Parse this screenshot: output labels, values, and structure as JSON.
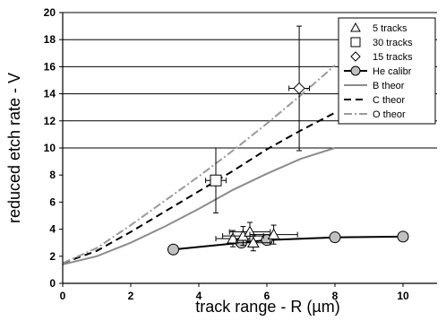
{
  "chart_data": {
    "type": "line",
    "xlabel": "track range - R (µm)",
    "ylabel": "reduced etch rate - V",
    "xlim": [
      0,
      11
    ],
    "ylim": [
      0,
      20
    ],
    "x_ticks": [
      0,
      2,
      4,
      6,
      8,
      10
    ],
    "y_ticks": [
      0,
      2,
      4,
      6,
      8,
      10,
      12,
      14,
      16,
      18,
      20
    ],
    "grid": "horizontal lines at 10 to 20",
    "legend_position": "top-right",
    "series": [
      {
        "name": "5  tracks",
        "kind": "scatter",
        "marker": "triangle",
        "points": [
          {
            "x": 5.0,
            "y": 3.3,
            "xerr": 0.5,
            "yerr": 0.6
          },
          {
            "x": 5.3,
            "y": 3.5,
            "xerr": 0.6,
            "yerr": 0.7
          },
          {
            "x": 5.5,
            "y": 3.8,
            "xerr": 0.6,
            "yerr": 0.7
          },
          {
            "x": 5.6,
            "y": 3.0,
            "xerr": 0.5,
            "yerr": 0.6
          },
          {
            "x": 6.2,
            "y": 3.6,
            "xerr": 0.7,
            "yerr": 0.7
          }
        ]
      },
      {
        "name": "30 tracks",
        "kind": "scatter",
        "marker": "square",
        "points": [
          {
            "x": 4.5,
            "y": 7.6,
            "xerr": 0.3,
            "yerr": 2.4
          }
        ]
      },
      {
        "name": "15 tracks",
        "kind": "scatter",
        "marker": "diamond",
        "points": [
          {
            "x": 6.95,
            "y": 14.4,
            "xerr": 0.3,
            "yerr": 4.6
          }
        ]
      },
      {
        "name": "He calibr",
        "kind": "line-markers",
        "marker": "circle",
        "color": "#b0b0b0",
        "points": [
          {
            "x": 3.25,
            "y": 2.5
          },
          {
            "x": 5.25,
            "y": 3.0
          },
          {
            "x": 6.0,
            "y": 3.2
          },
          {
            "x": 8.0,
            "y": 3.4
          },
          {
            "x": 10.0,
            "y": 3.45
          }
        ]
      },
      {
        "name": "B theor",
        "kind": "line",
        "style": "solid",
        "color": "#8c8c8c",
        "points": [
          {
            "x": 0,
            "y": 1.4
          },
          {
            "x": 1,
            "y": 2.0
          },
          {
            "x": 2,
            "y": 3.0
          },
          {
            "x": 3,
            "y": 4.2
          },
          {
            "x": 4,
            "y": 5.5
          },
          {
            "x": 5,
            "y": 6.9
          },
          {
            "x": 6,
            "y": 8.1
          },
          {
            "x": 7,
            "y": 9.2
          },
          {
            "x": 8,
            "y": 10.0
          }
        ]
      },
      {
        "name": "C theor",
        "kind": "line",
        "style": "dashed",
        "color": "#000000",
        "points": [
          {
            "x": 0,
            "y": 1.5
          },
          {
            "x": 1,
            "y": 2.4
          },
          {
            "x": 2,
            "y": 3.8
          },
          {
            "x": 3,
            "y": 5.3
          },
          {
            "x": 4,
            "y": 6.8
          },
          {
            "x": 5,
            "y": 8.3
          },
          {
            "x": 6,
            "y": 9.9
          },
          {
            "x": 7,
            "y": 11.3
          },
          {
            "x": 8,
            "y": 12.6
          }
        ]
      },
      {
        "name": "O theor",
        "kind": "line",
        "style": "dash-dot",
        "color": "#9a9a9a",
        "points": [
          {
            "x": 0,
            "y": 1.5
          },
          {
            "x": 1,
            "y": 2.6
          },
          {
            "x": 2,
            "y": 4.3
          },
          {
            "x": 3,
            "y": 6.1
          },
          {
            "x": 4,
            "y": 7.9
          },
          {
            "x": 5,
            "y": 9.8
          },
          {
            "x": 6,
            "y": 11.8
          },
          {
            "x": 7,
            "y": 13.9
          },
          {
            "x": 8,
            "y": 16.1
          }
        ]
      }
    ]
  }
}
